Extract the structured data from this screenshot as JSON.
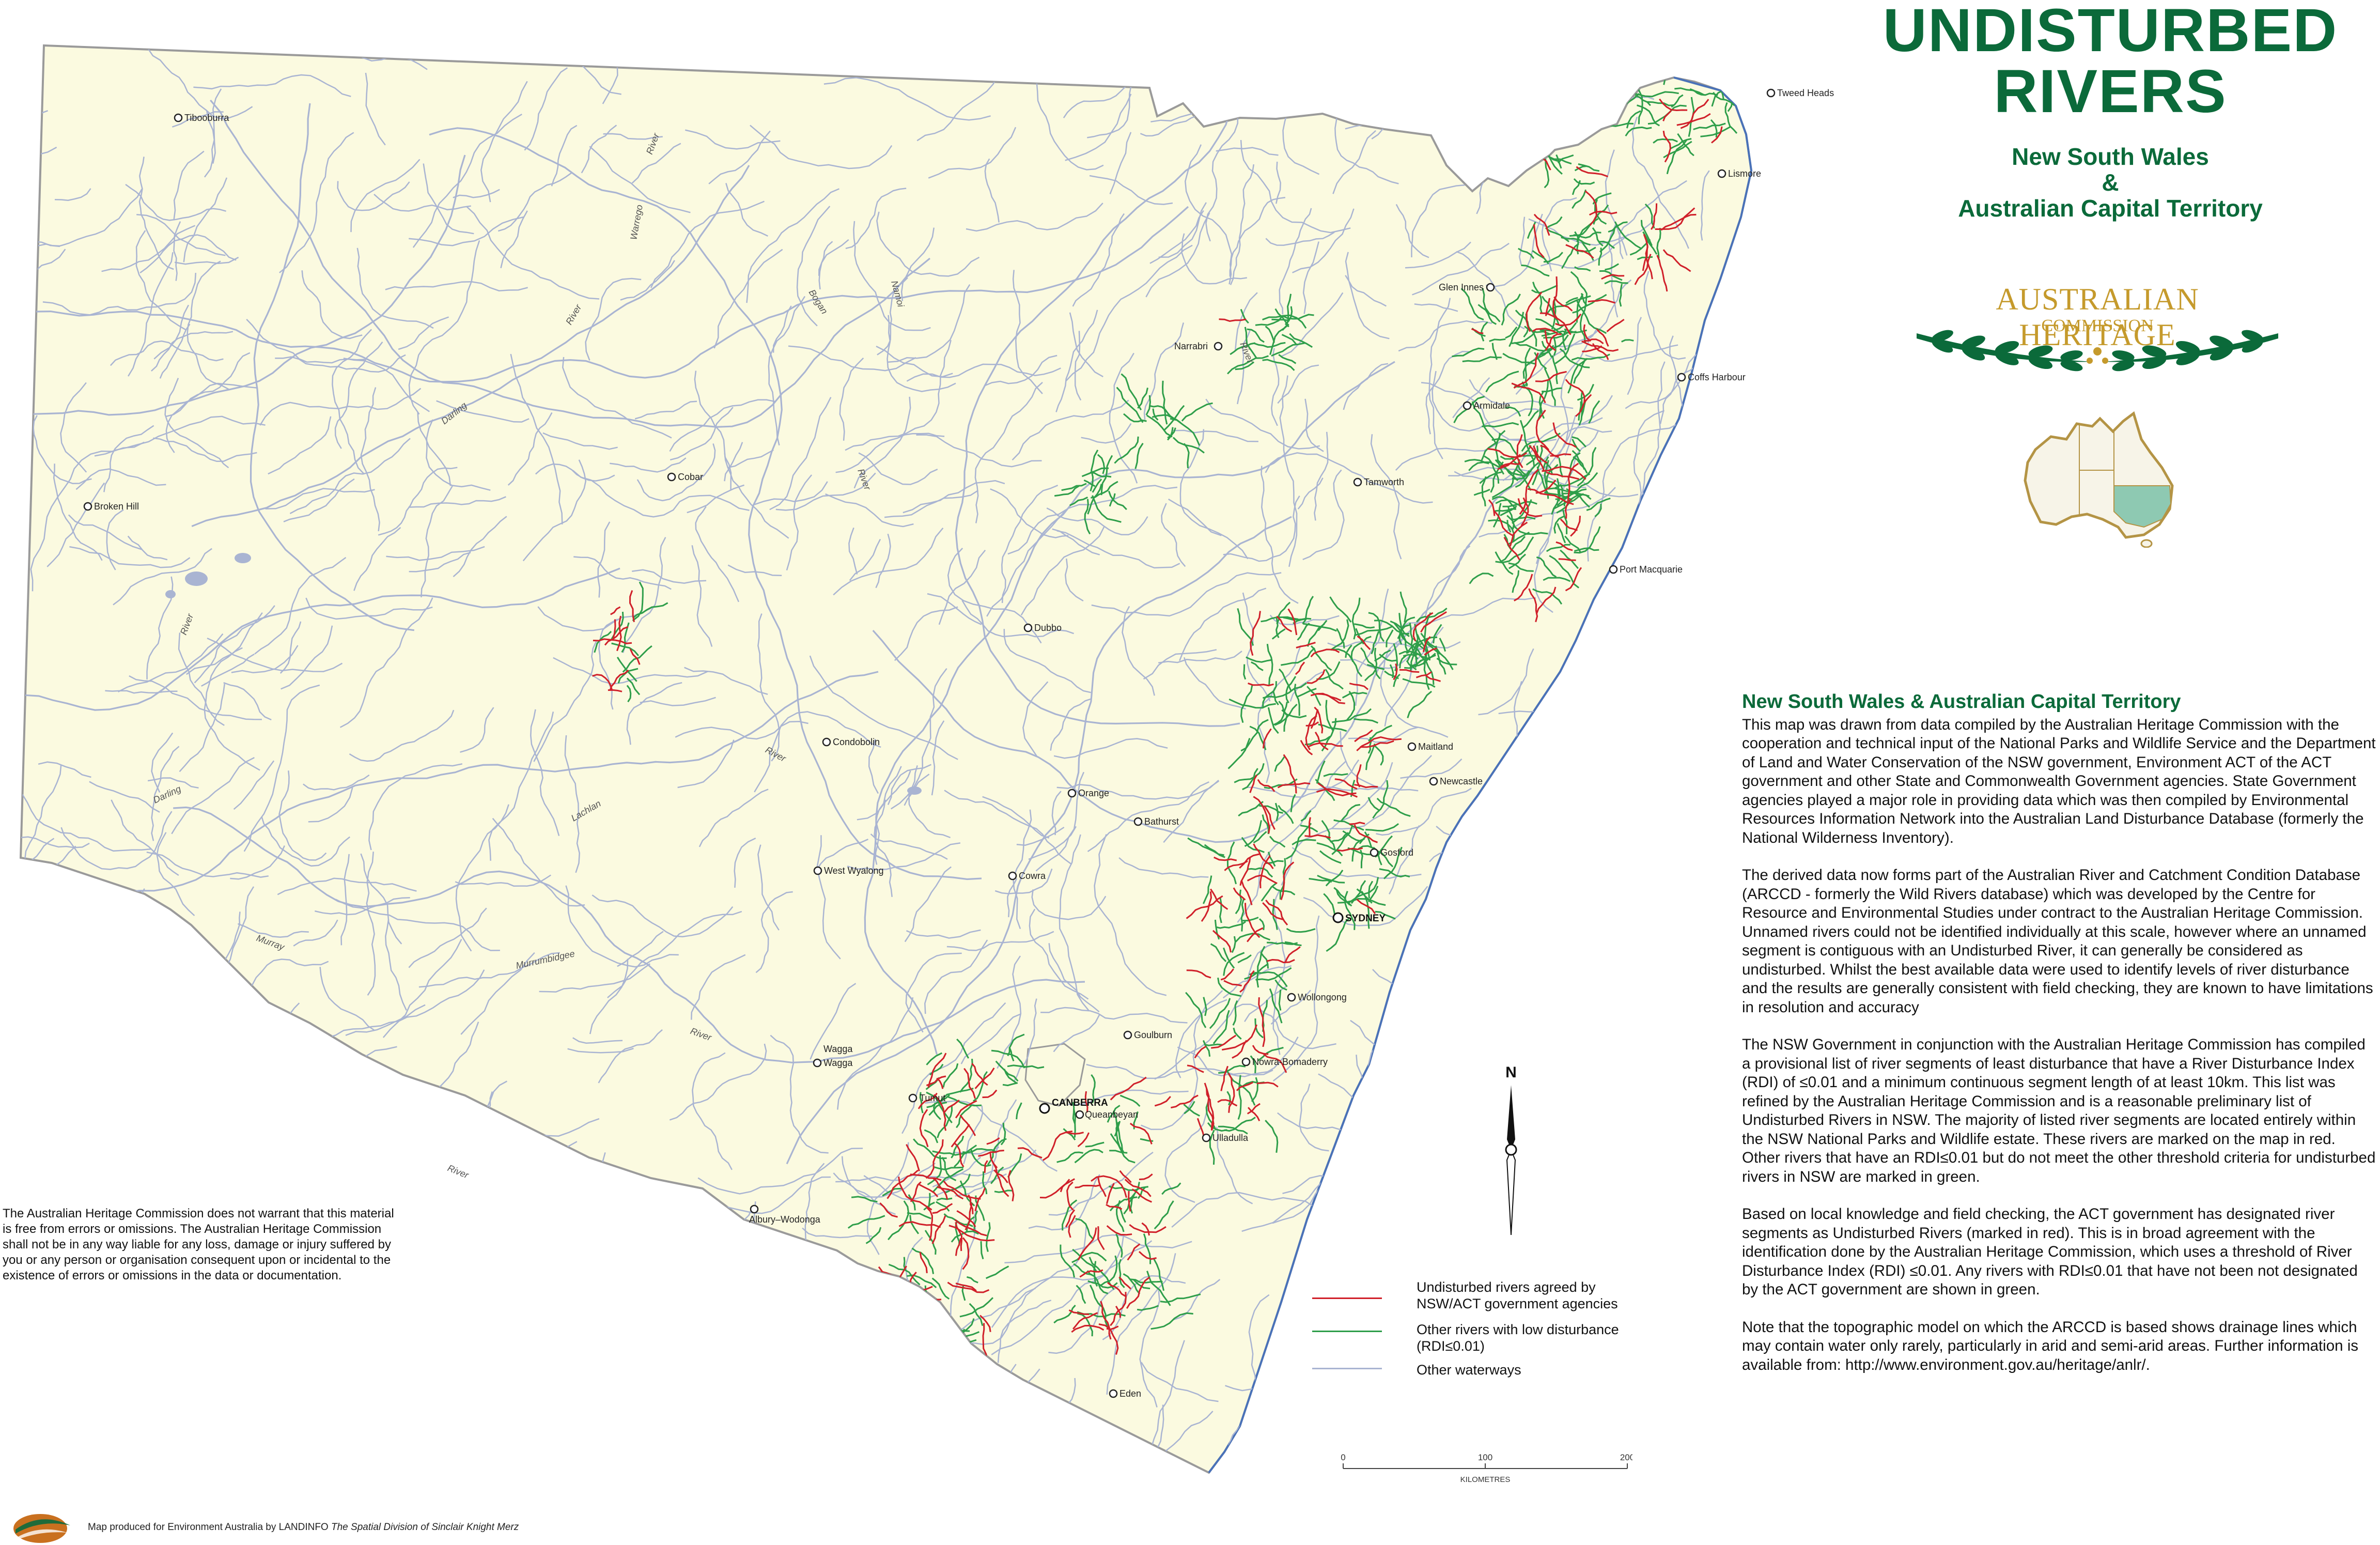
{
  "title": {
    "line1": "UNDISTURBED",
    "line2": "RIVERS"
  },
  "subtitle": {
    "line1": "New South Wales",
    "line2": "&",
    "line3": "Australian Capital Territory"
  },
  "logo": {
    "name": "AUSTRALIAN HERITAGE",
    "sub": "COMMISSION",
    "icon": "laurel-wreath-icon"
  },
  "colors": {
    "land": "#fbfae0",
    "sea": "#ffffff",
    "border": "#9a9a9a",
    "title_green": "#0b6a3a",
    "gold": "#c59a2c",
    "undisturbed_red": "#d0202a",
    "low_disturbance_green": "#2e9e4a",
    "waterways": "#a9b4d2",
    "coast": "#4a72b8",
    "inset_nsw": "#8ec9b2"
  },
  "towns": [
    {
      "name": "Tibooburra"
    },
    {
      "name": "Tweed Heads"
    },
    {
      "name": "Lismore"
    },
    {
      "name": "Glen Innes"
    },
    {
      "name": "Narrabri"
    },
    {
      "name": "Coffs Harbour"
    },
    {
      "name": "Armidale"
    },
    {
      "name": "Broken Hill"
    },
    {
      "name": "Cobar"
    },
    {
      "name": "Tamworth"
    },
    {
      "name": "Port Macquarie"
    },
    {
      "name": "Dubbo"
    },
    {
      "name": "Condobolin"
    },
    {
      "name": "Maitland"
    },
    {
      "name": "Newcastle"
    },
    {
      "name": "Orange"
    },
    {
      "name": "Bathurst"
    },
    {
      "name": "Gosford"
    },
    {
      "name": "West Wyalong"
    },
    {
      "name": "Cowra"
    },
    {
      "name": "SYDNEY"
    },
    {
      "name": "Wollongong"
    },
    {
      "name": "Goulburn"
    },
    {
      "name": "Nowra-Bomaderry"
    },
    {
      "name": "Wagga"
    },
    {
      "name": "Wagga"
    },
    {
      "name": "Tumut"
    },
    {
      "name": "CANBERRA"
    },
    {
      "name": "Queanbeyan"
    },
    {
      "name": "Ulladulla"
    },
    {
      "name": "Albury–Wodonga"
    },
    {
      "name": "Eden"
    }
  ],
  "river_labels": [
    "River",
    "Warrego",
    "River",
    "Bogan",
    "Namoi",
    "River",
    "Darling",
    "River",
    "River",
    "Darling",
    "Lachlan",
    "River",
    "Murrumbidgee",
    "Murray",
    "River",
    "River"
  ],
  "description": {
    "heading": "New South Wales & Australian Capital Territory",
    "paragraphs": [
      "This map was drawn from data compiled by the Australian Heritage Commission with the cooperation and technical input of the National Parks and Wildlife Service and the Department of Land and Water Conservation of the NSW government, Environment ACT of the ACT government and other State and Commonwealth Government agencies.  State Government agencies played a major role in providing data which was then compiled by Environmental Resources Information Network into the Australian Land Disturbance Database (formerly the National Wilderness Inventory).",
      "The derived data now forms part of the Australian River and Catchment Condition Database (ARCCD - formerly the Wild Rivers database) which was developed by the Centre for Resource and Environmental Studies under contract to the Australian Heritage Commission.  Unnamed rivers could not be identified individually at this scale, however where an unnamed segment is contiguous with an Undisturbed River, it can generally be considered as undisturbed.  Whilst the best available data were used to identify levels of river disturbance and the results are generally consistent with field checking, they are known to have limitations in resolution and accuracy",
      "The NSW Government in conjunction with the Australian Heritage Commission has compiled a provisional list of river segments of least disturbance that have a River Disturbance Index (RDI) of ≤0.01 and a minimum continuous segment length of at least 10km.  This list was refined by the Australian Heritage Commission and is a reasonable preliminary list of Undisturbed Rivers in NSW.  The majority of listed river segments are located entirely within the NSW National Parks and Wildlife estate.  These rivers are marked on the map in red.  Other rivers that have an RDI≤0.01 but do not meet the other threshold criteria for undisturbed rivers in NSW are marked in green.",
      "Based on local knowledge and field checking, the ACT government has designated river segments as Undisturbed Rivers (marked in red).  This is in broad agreement with the identification done by the Australian Heritage Commission, which uses a threshold of River Disturbance Index (RDI) ≤0.01.  Any rivers with RDI≤0.01 that have not been not designated by the ACT government are shown in green.",
      "Note that the topographic model on which the ARCCD is based shows drainage lines which may contain water only rarely, particularly in arid and semi-arid areas. Further information is available from: http://www.environment.gov.au/heritage/anlr/."
    ]
  },
  "disclaimer": "The Australian Heritage Commission does not warrant that this material is free from errors or omissions. The Australian Heritage Commission shall not be in any way liable for any loss, damage or injury suffered by you or any person or organisation consequent upon or incidental to the existence of errors or omissions in the data or documentation.",
  "legend": {
    "items": [
      {
        "label_line1": "Undisturbed rivers agreed by",
        "label_line2": "NSW/ACT government agencies",
        "color": "#d0202a"
      },
      {
        "label_line1": "Other rivers with low disturbance",
        "label_line2": "(RDI≤0.01)",
        "color": "#2e9e4a"
      },
      {
        "label_line1": "Other waterways",
        "label_line2": "",
        "color": "#a9b4d2"
      }
    ]
  },
  "scale": {
    "ticks": [
      "0",
      "100",
      "200"
    ],
    "unit": "KILOMETRES"
  },
  "north": {
    "label": "N"
  },
  "credit": {
    "prefix": "Map produced for Environment Australia by LANDINFO",
    "italic": "The Spatial Division of Sinclair Knight Merz"
  }
}
